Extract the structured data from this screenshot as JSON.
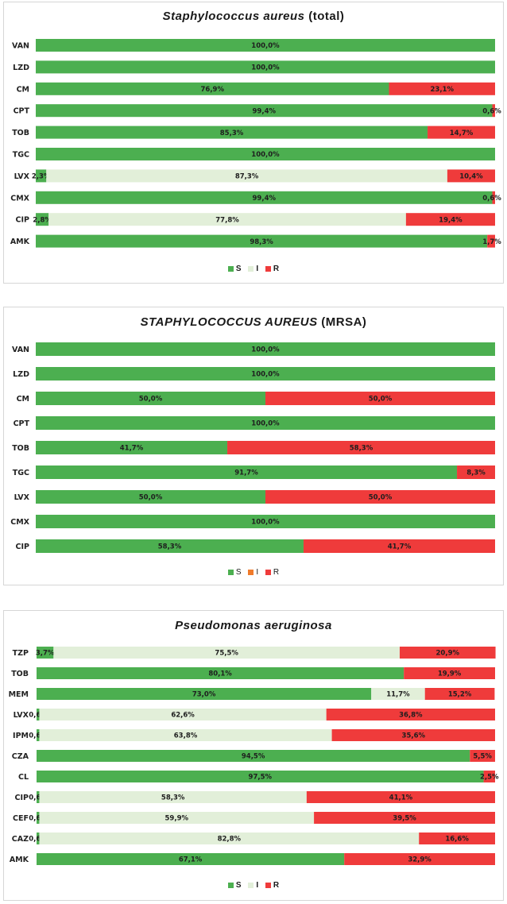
{
  "colors": {
    "S": "#4caf50",
    "I": "#e2efd9",
    "R": "#ef3b3b",
    "legend_I_mrsa": "#f07b2b"
  },
  "panels": [
    {
      "title_italic": "Staphylococcus aureus",
      "title_rest": " (total)",
      "legend": [
        "S",
        "I",
        "R"
      ],
      "chart_data": {
        "type": "bar",
        "orientation": "horizontal-stacked-100",
        "title": "Staphylococcus aureus (total)",
        "categories": [
          "VAN",
          "LZD",
          "CM",
          "CPT",
          "TOB",
          "TGC",
          "LVX",
          "CMX",
          "CIP",
          "AMK"
        ],
        "series": [
          {
            "name": "S",
            "values": [
              100.0,
              100.0,
              76.9,
              99.4,
              85.3,
              100.0,
              2.3,
              99.4,
              2.8,
              98.3
            ],
            "labels": [
              "100,0%",
              "100,0%",
              "76,9%",
              "99,4%",
              "85,3%",
              "100,0%",
              "2,3%",
              "99,4%",
              "2,8%",
              "98,3%"
            ]
          },
          {
            "name": "I",
            "values": [
              0,
              0,
              0,
              0,
              0,
              0,
              87.3,
              0,
              77.8,
              0
            ],
            "labels": [
              "",
              "",
              "",
              "",
              "",
              "",
              "87,3%",
              "",
              "77,8%",
              ""
            ]
          },
          {
            "name": "R",
            "values": [
              0,
              0,
              23.1,
              0.6,
              14.7,
              0,
              10.4,
              0.6,
              19.4,
              1.7
            ],
            "labels": [
              "",
              "",
              "23,1%",
              "0,6%",
              "14,7%",
              "",
              "10,4%",
              "0,6%",
              "19,4%",
              "1,7%"
            ]
          }
        ]
      }
    },
    {
      "title_italic": "STAPHYLOCOCCUS AUREUS",
      "title_rest": " (MRSA)",
      "legend": [
        "S",
        "I",
        "R"
      ],
      "chart_data": {
        "type": "bar",
        "orientation": "horizontal-stacked-100",
        "title": "STAPHYLOCOCCUS AUREUS (MRSA)",
        "categories": [
          "VAN",
          "LZD",
          "CM",
          "CPT",
          "TOB",
          "TGC",
          "LVX",
          "CMX",
          "CIP"
        ],
        "series": [
          {
            "name": "S",
            "values": [
              100.0,
              100.0,
              50.0,
              100.0,
              41.7,
              91.7,
              50.0,
              100.0,
              58.3
            ],
            "labels": [
              "100,0%",
              "100,0%",
              "50,0%",
              "100,0%",
              "41,7%",
              "91,7%",
              "50,0%",
              "100,0%",
              "58,3%"
            ]
          },
          {
            "name": "I",
            "values": [
              0,
              0,
              0,
              0,
              0,
              0,
              0,
              0,
              0
            ],
            "labels": [
              "",
              "",
              "",
              "",
              "",
              "",
              "",
              "",
              ""
            ]
          },
          {
            "name": "R",
            "values": [
              0,
              0,
              50.0,
              0,
              58.3,
              8.3,
              50.0,
              0,
              41.7
            ],
            "labels": [
              "",
              "",
              "50,0%",
              "",
              "58,3%",
              "8,3%",
              "50,0%",
              "",
              "41,7%"
            ]
          }
        ]
      }
    },
    {
      "title_italic": "Pseudomonas aeruginosa",
      "title_rest": "",
      "legend": [
        "S",
        "I",
        "R"
      ],
      "chart_data": {
        "type": "bar",
        "orientation": "horizontal-stacked-100",
        "title": "Pseudomonas aeruginosa",
        "categories": [
          "TZP",
          "TOB",
          "MEM",
          "LVX",
          "IPM",
          "CZA",
          "CL",
          "CIP",
          "CEF",
          "CAZ",
          "AMK"
        ],
        "series": [
          {
            "name": "S",
            "values": [
              3.7,
              80.1,
              73.0,
              0.6,
              0.6,
              94.5,
              97.5,
              0.6,
              0.6,
              0.6,
              67.1
            ],
            "labels": [
              "3,7%",
              "80,1%",
              "73,0%",
              "0,6%",
              "0,6%",
              "94,5%",
              "97,5%",
              "0,6%",
              "0,6%",
              "0,6%",
              "67,1%"
            ]
          },
          {
            "name": "I",
            "values": [
              75.5,
              0,
              11.7,
              62.6,
              63.8,
              0,
              0,
              58.3,
              59.9,
              82.8,
              0
            ],
            "labels": [
              "75,5%",
              "",
              "11,7%",
              "62,6%",
              "63,8%",
              "",
              "",
              "58,3%",
              "59,9%",
              "82,8%",
              ""
            ]
          },
          {
            "name": "R",
            "values": [
              20.9,
              19.9,
              15.2,
              36.8,
              35.6,
              5.5,
              2.5,
              41.1,
              39.5,
              16.6,
              32.9
            ],
            "labels": [
              "20,9%",
              "19,9%",
              "15,2%",
              "36,8%",
              "35,6%",
              "5,5%",
              "2,5%",
              "41,1%",
              "39,5%",
              "16,6%",
              "32,9%"
            ]
          }
        ]
      }
    }
  ]
}
